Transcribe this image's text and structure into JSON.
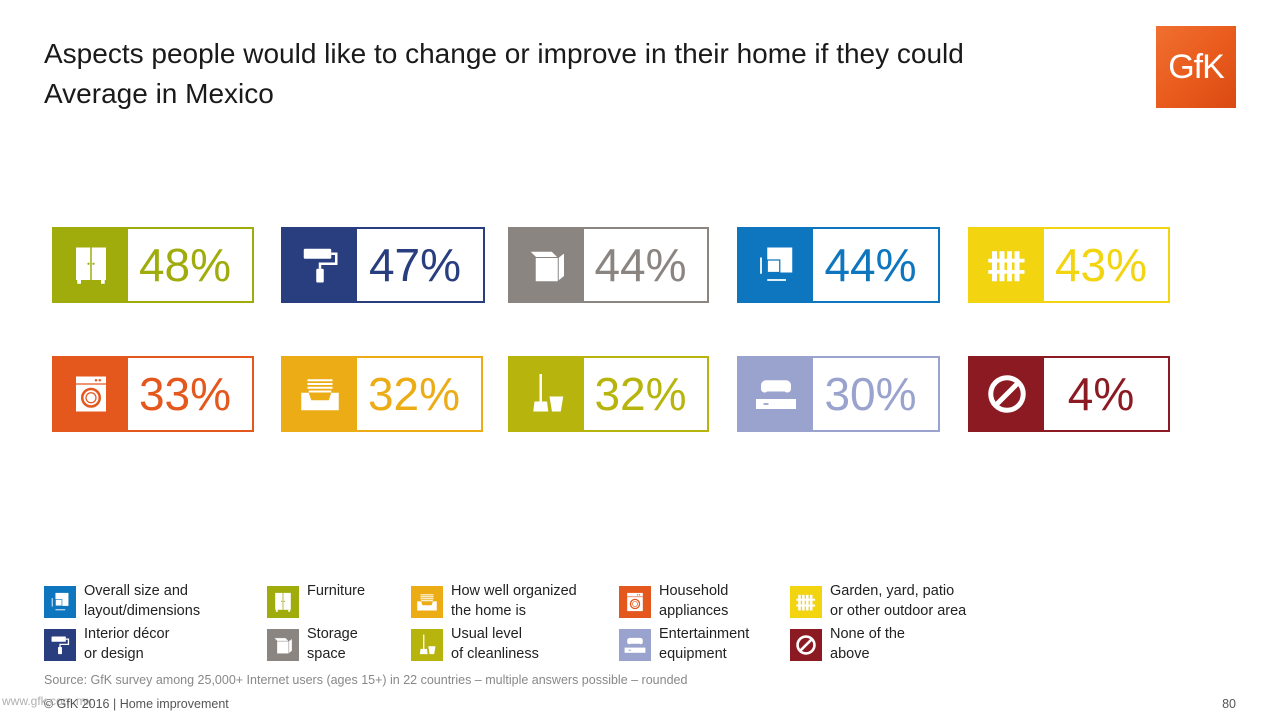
{
  "title_line1": "Aspects people would like to change or improve in their home if they could",
  "title_line2": "Average in Mexico",
  "logo_text": "GfK",
  "chart_data": {
    "type": "tile-grid",
    "unit": "%",
    "items": [
      {
        "label": "Furniture",
        "value": 48,
        "display": "48%",
        "color": "#a0ac0c",
        "icon": "wardrobe-icon"
      },
      {
        "label": "Interior décor or design",
        "value": 47,
        "display": "47%",
        "color": "#293e7e",
        "icon": "paint-roller-icon"
      },
      {
        "label": "Storage space",
        "value": 44,
        "display": "44%",
        "color": "#8b8582",
        "icon": "box-icon"
      },
      {
        "label": "Overall size and layout/dimensions",
        "value": 44,
        "display": "44%",
        "color": "#0d76be",
        "icon": "floorplan-icon"
      },
      {
        "label": "Garden, yard, patio or other outdoor area",
        "value": 43,
        "display": "43%",
        "color": "#f2d410",
        "icon": "fence-icon"
      },
      {
        "label": "Household appliances",
        "value": 33,
        "display": "33%",
        "color": "#e4571d",
        "icon": "washing-machine-icon"
      },
      {
        "label": "How well organized the home is",
        "value": 32,
        "display": "32%",
        "color": "#ecac16",
        "icon": "drawer-icon"
      },
      {
        "label": "Usual level of cleanliness",
        "value": 32,
        "display": "32%",
        "color": "#b7b50d",
        "icon": "broom-bucket-icon"
      },
      {
        "label": "Entertainment equipment",
        "value": 30,
        "display": "30%",
        "color": "#9aa3cd",
        "icon": "game-console-icon"
      },
      {
        "label": "None of the above",
        "value": 4,
        "display": "4%",
        "color": "#8c1a23",
        "icon": "prohibited-icon"
      }
    ]
  },
  "legend": [
    {
      "line1": "Overall size and",
      "line2": "layout/dimensions",
      "color": "#0d76be",
      "icon": "floorplan-icon"
    },
    {
      "line1": "Furniture",
      "line2": "",
      "color": "#a0ac0c",
      "icon": "wardrobe-icon"
    },
    {
      "line1": "How well organized",
      "line2": "the home is",
      "color": "#ecac16",
      "icon": "drawer-icon"
    },
    {
      "line1": "Household",
      "line2": "appliances",
      "color": "#e4571d",
      "icon": "washing-machine-icon"
    },
    {
      "line1": "Garden, yard, patio",
      "line2": "or other outdoor area",
      "color": "#f2d410",
      "icon": "fence-icon"
    },
    {
      "line1": "Interior décor",
      "line2": "or design",
      "color": "#293e7e",
      "icon": "paint-roller-icon"
    },
    {
      "line1": "Storage",
      "line2": "space",
      "color": "#8b8582",
      "icon": "box-icon"
    },
    {
      "line1": "Usual level",
      "line2": "of cleanliness",
      "color": "#b7b50d",
      "icon": "broom-bucket-icon"
    },
    {
      "line1": "Entertainment",
      "line2": "equipment",
      "color": "#9aa3cd",
      "icon": "game-console-icon"
    },
    {
      "line1": "None of the",
      "line2": "above",
      "color": "#8c1a23",
      "icon": "prohibited-icon"
    }
  ],
  "source": "Source: GfK survey among 25,000+ Internet users (ages 15+) in 22 countries – multiple answers possible – rounded",
  "copyright": "© GfK 2016 | Home improvement",
  "watermark": "www.gfk.com.mx",
  "page_number": "80"
}
